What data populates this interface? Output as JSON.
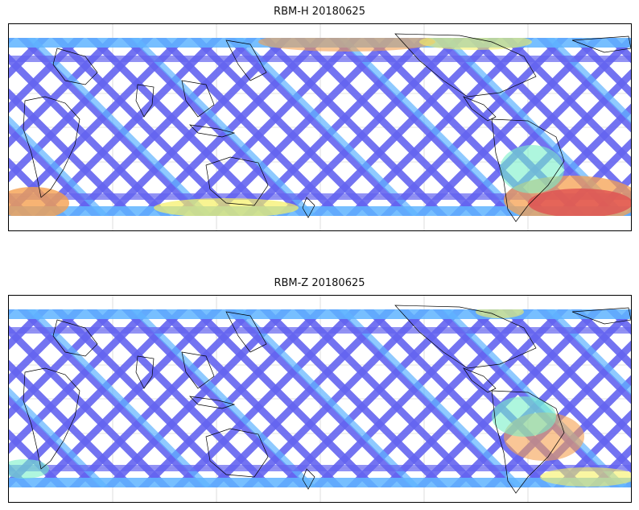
{
  "panels": [
    {
      "title": "RBM-H 20180625",
      "hot_zone": "south-atlantic-strong"
    },
    {
      "title": "RBM-Z 20180625",
      "hot_zone": "south-atlantic-weak"
    }
  ],
  "colors": {
    "low": "#6464f0",
    "mid_low": "#5fb4ff",
    "mid": "#78f0c8",
    "mid_high": "#f5f064",
    "high": "#f5a050",
    "max": "#e05050",
    "coast": "#000000",
    "grid": "#c8c8c8"
  }
}
